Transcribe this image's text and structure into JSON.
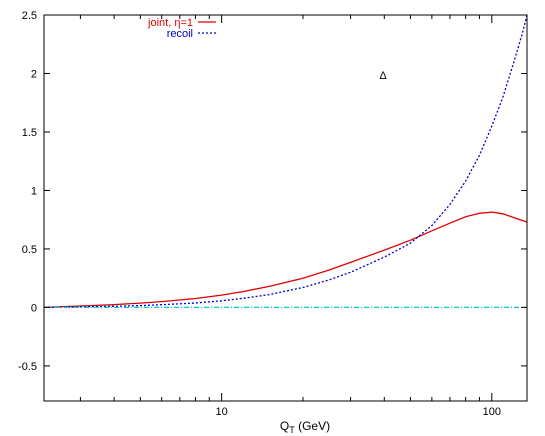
{
  "chart_data": {
    "type": "line",
    "title": "",
    "xlabel": "Q",
    "xlabel_sub": "T",
    "xlabel_unit": " (GeV)",
    "ylabel": "",
    "xscale": "log",
    "xlim": [
      2.2,
      135
    ],
    "ylim": [
      -0.8,
      2.5
    ],
    "x_ticks": [
      10,
      100
    ],
    "x_tick_labels": [
      "10",
      "100"
    ],
    "y_ticks": [
      2.5,
      2,
      1.5,
      1,
      0.5,
      0,
      -0.5
    ],
    "y_tick_labels": [
      "2.5",
      "2",
      "1.5",
      "1",
      "0.5",
      "0",
      "-0.5"
    ],
    "grid": false,
    "legend_position": "top-left",
    "annotation": "Δ",
    "series": [
      {
        "name": "joint, η=1",
        "color": "#e00000",
        "dash": "solid",
        "x": [
          2.2,
          3,
          4,
          5,
          6,
          8,
          10,
          12,
          15,
          20,
          25,
          30,
          40,
          50,
          60,
          70,
          80,
          90,
          100,
          110,
          120,
          135
        ],
        "y": [
          0.0,
          0.012,
          0.024,
          0.037,
          0.05,
          0.076,
          0.105,
          0.135,
          0.18,
          0.25,
          0.32,
          0.385,
          0.49,
          0.575,
          0.655,
          0.72,
          0.775,
          0.805,
          0.815,
          0.8,
          0.77,
          0.73
        ]
      },
      {
        "name": "recoil",
        "color": "#0000cc",
        "dash": "dotted",
        "x": [
          2.2,
          3,
          4,
          5,
          6,
          8,
          10,
          12,
          15,
          20,
          25,
          30,
          40,
          50,
          60,
          70,
          80,
          90,
          100,
          110,
          120,
          130,
          135
        ],
        "y": [
          0.0,
          0.005,
          0.01,
          0.016,
          0.023,
          0.038,
          0.057,
          0.078,
          0.11,
          0.17,
          0.235,
          0.3,
          0.43,
          0.55,
          0.7,
          0.88,
          1.08,
          1.3,
          1.55,
          1.8,
          2.08,
          2.35,
          2.5
        ]
      },
      {
        "name": "",
        "color": "#00cccc",
        "dash": "dashdot",
        "x": [
          2.2,
          135
        ],
        "y": [
          0,
          0
        ]
      }
    ]
  }
}
